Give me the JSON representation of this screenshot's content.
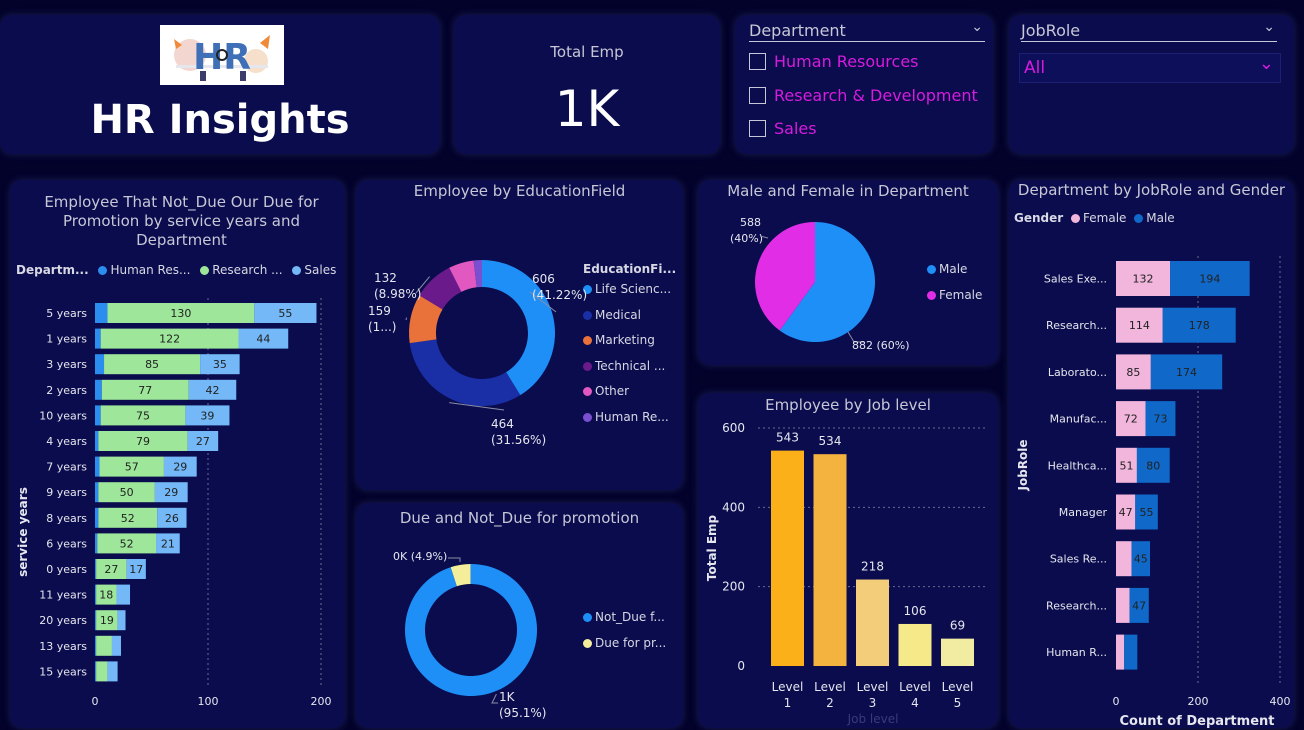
{
  "header": {
    "logo_text": "HR",
    "title": "HR Insights"
  },
  "kpi": {
    "label": "Total Emp",
    "value": "1K"
  },
  "department_slicer": {
    "title": "Department",
    "options": [
      "Human Resources",
      "Research & Development",
      "Sales"
    ]
  },
  "jobrole_slicer": {
    "title": "JobRole",
    "selected": "All"
  },
  "colors": {
    "human_resources": "#2c8df0",
    "research": "#9ee79a",
    "sales": "#74b8f7",
    "female": "#f2b5dc",
    "male": "#1068c8",
    "pie_male": "#1e8ff7",
    "pie_female": "#e12ee6",
    "due": "#f4ee9b",
    "not_due": "#1e8ff7"
  },
  "chart_data": [
    {
      "id": "service_years",
      "type": "bar",
      "title": "Employee That Not_Due Our Due for Promotion by service years and Department",
      "legend_title": "Departm...",
      "ylabel": "service years",
      "xticks": [
        "0",
        "100",
        "200"
      ],
      "xlim": [
        0,
        200
      ],
      "categories": [
        "5 years",
        "1 years",
        "3 years",
        "2 years",
        "10 years",
        "4 years",
        "7 years",
        "9 years",
        "8 years",
        "6 years",
        "0 years",
        "11 years",
        "20 years",
        "13 years",
        "15 years"
      ],
      "series": [
        {
          "name": "Human Res...",
          "values": [
            11,
            5,
            8,
            6,
            5,
            3,
            4,
            3,
            3,
            2,
            1,
            1,
            1,
            1,
            1
          ]
        },
        {
          "name": "Research ...",
          "values": [
            130,
            122,
            85,
            77,
            75,
            79,
            57,
            50,
            52,
            52,
            27,
            18,
            19,
            14,
            10
          ]
        },
        {
          "name": "Sales",
          "values": [
            55,
            44,
            35,
            42,
            39,
            27,
            29,
            29,
            26,
            21,
            17,
            12,
            7,
            8,
            9
          ]
        }
      ],
      "data_labels": [
        [
          "",
          "130",
          "55"
        ],
        [
          "",
          "122",
          "44"
        ],
        [
          "",
          "85",
          "35"
        ],
        [
          "",
          "77",
          "42"
        ],
        [
          "",
          "75",
          "39"
        ],
        [
          "",
          "79",
          "27"
        ],
        [
          "",
          "57",
          "29"
        ],
        [
          "",
          "50",
          "29"
        ],
        [
          "",
          "52",
          "26"
        ],
        [
          "",
          "52",
          "21"
        ],
        [
          "",
          "27",
          "17"
        ],
        [
          "",
          "18",
          ""
        ],
        [
          "",
          "19",
          ""
        ],
        [
          "",
          "",
          ""
        ],
        [
          "",
          "",
          ""
        ]
      ]
    },
    {
      "id": "education",
      "type": "pie",
      "title": "Employee by EducationField",
      "legend_title": "EducationFi...",
      "slices": [
        {
          "name": "Life Scienc...",
          "value": 606,
          "color": "#1e8ff7"
        },
        {
          "name": "Medical",
          "value": 464,
          "color": "#1a2fa6"
        },
        {
          "name": "Marketing",
          "value": 159,
          "color": "#e8723a"
        },
        {
          "name": "Technical ...",
          "value": 132,
          "color": "#6b1a8c"
        },
        {
          "name": "Other",
          "value": 82,
          "color": "#e258c1"
        },
        {
          "name": "Human Re...",
          "value": 27,
          "color": "#7a4fd0"
        }
      ],
      "labels": [
        {
          "l1": "606",
          "l2": "(41.22%)"
        },
        {
          "l1": "464",
          "l2": "(31.56%)"
        },
        {
          "l1": "159",
          "l2": "(1...)"
        },
        {
          "l1": "132",
          "l2": "(8.98%)"
        }
      ]
    },
    {
      "id": "gender",
      "type": "pie",
      "title": "Male and Female in Department",
      "slices": [
        {
          "name": "Male",
          "value": 882,
          "color": "#1e8ff7"
        },
        {
          "name": "Female",
          "value": 588,
          "color": "#e12ee6"
        }
      ],
      "labels": [
        {
          "l1": "882 (60%)"
        },
        {
          "l1": "588",
          "l2": "(40%)"
        }
      ]
    },
    {
      "id": "promotion",
      "type": "pie",
      "title": "Due and Not_Due for promotion",
      "slices": [
        {
          "name": "Not_Due f...",
          "value": 95.1,
          "color": "#1e8ff7"
        },
        {
          "name": "Due for pr...",
          "value": 4.9,
          "color": "#f4ee9b"
        }
      ],
      "labels": [
        {
          "l1": "1K",
          "l2": "(95.1%)"
        },
        {
          "l1": "0K (4.9%)"
        }
      ]
    },
    {
      "id": "job_level",
      "type": "bar",
      "title": "Employee by Job level",
      "xlabel": "Job level",
      "ylabel": "Total Emp",
      "ylim": [
        0,
        600
      ],
      "yticks": [
        "0",
        "200",
        "400",
        "600"
      ],
      "categories": [
        "Level 1",
        "Level 2",
        "Level 3",
        "Level 4",
        "Level 5"
      ],
      "values": [
        543,
        534,
        218,
        106,
        69
      ],
      "colors": [
        "#fbb01a",
        "#f4b23e",
        "#f3cd7a",
        "#f6e98a",
        "#f1eca2"
      ]
    },
    {
      "id": "jobrole_gender",
      "type": "bar",
      "title": "Department by JobRole and Gender",
      "legend_title": "Gender",
      "xlabel": "Count of Department",
      "ylabel": "JobRole",
      "xlim": [
        0,
        400
      ],
      "xticks": [
        "0",
        "200",
        "400"
      ],
      "categories": [
        "Sales Exe...",
        "Research...",
        "Laborato...",
        "Manufac...",
        "Healthca...",
        "Manager",
        "Sales Re...",
        "Research...",
        "Human R..."
      ],
      "series": [
        {
          "name": "Female",
          "values": [
            132,
            114,
            85,
            72,
            51,
            47,
            38,
            33,
            20
          ]
        },
        {
          "name": "Male",
          "values": [
            194,
            178,
            174,
            73,
            80,
            55,
            45,
            47,
            32
          ]
        }
      ],
      "data_labels": [
        [
          "132",
          "194"
        ],
        [
          "114",
          "178"
        ],
        [
          "85",
          "174"
        ],
        [
          "72",
          "73"
        ],
        [
          "51",
          "80"
        ],
        [
          "47",
          "55"
        ],
        [
          "",
          "45"
        ],
        [
          "",
          "47"
        ],
        [
          "",
          ""
        ]
      ]
    }
  ]
}
